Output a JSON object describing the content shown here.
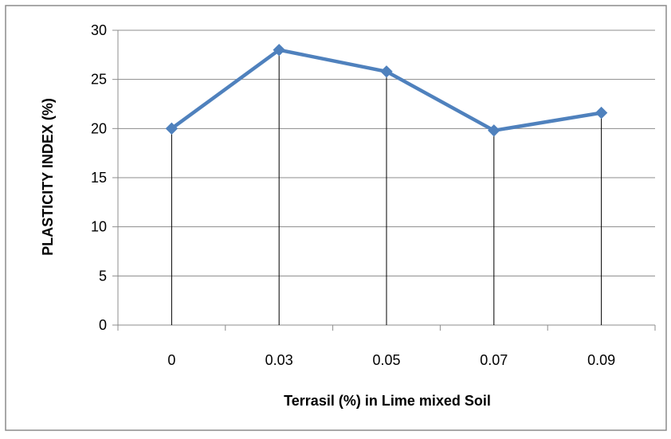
{
  "chart_data": {
    "type": "line",
    "title": "",
    "xlabel": "Terrasil (%) in Lime mixed Soil",
    "ylabel": "PLASTICITY INDEX (%)",
    "categories": [
      "0",
      "0.03",
      "0.05",
      "0.07",
      "0.09"
    ],
    "series": [
      {
        "values": [
          20,
          28,
          25.8,
          19.8,
          21.6
        ],
        "color": "#4F81BD",
        "marker": "diamond"
      }
    ],
    "ylim": [
      0,
      30
    ],
    "yticks": [
      "0",
      "5",
      "10",
      "15",
      "20",
      "25",
      "30"
    ],
    "grid": true,
    "drop_lines": true,
    "legend": "none"
  }
}
